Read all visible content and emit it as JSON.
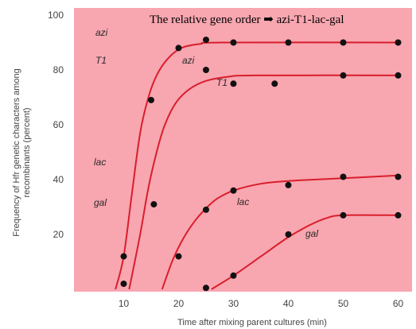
{
  "chart_data": {
    "type": "line",
    "title": "",
    "annotation": "The relative gene order ➡ azi-T1-lac-gal",
    "xlabel": "Time after mixing parent cultures (min)",
    "ylabel_line1": "Frequency of Hfr genetic characters among",
    "ylabel_line2": "recombinants (percent)",
    "xlim": [
      0,
      60
    ],
    "ylim": [
      0,
      100
    ],
    "x_ticks": [
      10,
      20,
      30,
      40,
      50,
      60
    ],
    "y_ticks": [
      20,
      40,
      60,
      80,
      100
    ],
    "grid": false,
    "colors": {
      "plot_background": "#f8a6b0",
      "curve": "#d81e2c",
      "point": "#111111"
    },
    "left_labels": [
      "azi",
      "T1",
      "lac",
      "gal"
    ],
    "series": [
      {
        "name": "azi",
        "points": [
          [
            10,
            12
          ],
          [
            15,
            69
          ],
          [
            20,
            88
          ],
          [
            25,
            91
          ],
          [
            30,
            90
          ],
          [
            40,
            90
          ],
          [
            50,
            90
          ],
          [
            60,
            90
          ]
        ],
        "curve": [
          [
            8.5,
            0
          ],
          [
            10,
            12
          ],
          [
            11.5,
            35
          ],
          [
            13,
            57
          ],
          [
            14.5,
            70
          ],
          [
            16,
            78
          ],
          [
            18,
            84
          ],
          [
            20.5,
            88
          ],
          [
            24,
            89.5
          ],
          [
            28,
            90
          ],
          [
            60,
            90
          ]
        ]
      },
      {
        "name": "T1",
        "points": [
          [
            10,
            2
          ],
          [
            25,
            80
          ],
          [
            30,
            75
          ],
          [
            37.5,
            75
          ],
          [
            50,
            78
          ],
          [
            60,
            78
          ]
        ],
        "curve": [
          [
            11,
            0
          ],
          [
            13,
            20
          ],
          [
            14.5,
            37
          ],
          [
            16,
            50
          ],
          [
            17.5,
            60
          ],
          [
            19.5,
            68
          ],
          [
            22,
            73
          ],
          [
            25,
            76
          ],
          [
            29,
            77.5
          ],
          [
            34,
            78
          ],
          [
            60,
            78
          ]
        ]
      },
      {
        "name": "lac",
        "points": [
          [
            15.5,
            31
          ],
          [
            20,
            12
          ],
          [
            25,
            29
          ],
          [
            30,
            36
          ],
          [
            40,
            38
          ],
          [
            50,
            41
          ],
          [
            60,
            41
          ]
        ],
        "curve": [
          [
            17,
            0
          ],
          [
            19,
            11
          ],
          [
            21,
            19
          ],
          [
            23,
            25
          ],
          [
            25,
            29.5
          ],
          [
            27,
            33
          ],
          [
            30,
            36
          ],
          [
            35,
            38.5
          ],
          [
            40,
            39.5
          ],
          [
            50,
            40.5
          ],
          [
            60,
            41.5
          ]
        ]
      },
      {
        "name": "gal",
        "points": [
          [
            25,
            0.5
          ],
          [
            30,
            5
          ],
          [
            40,
            20
          ],
          [
            50,
            27
          ],
          [
            60,
            27
          ]
        ],
        "curve": [
          [
            26,
            0
          ],
          [
            30,
            5
          ],
          [
            35,
            12
          ],
          [
            40,
            19
          ],
          [
            44,
            23.5
          ],
          [
            47,
            26
          ],
          [
            50,
            27
          ],
          [
            60,
            27
          ]
        ]
      }
    ]
  }
}
